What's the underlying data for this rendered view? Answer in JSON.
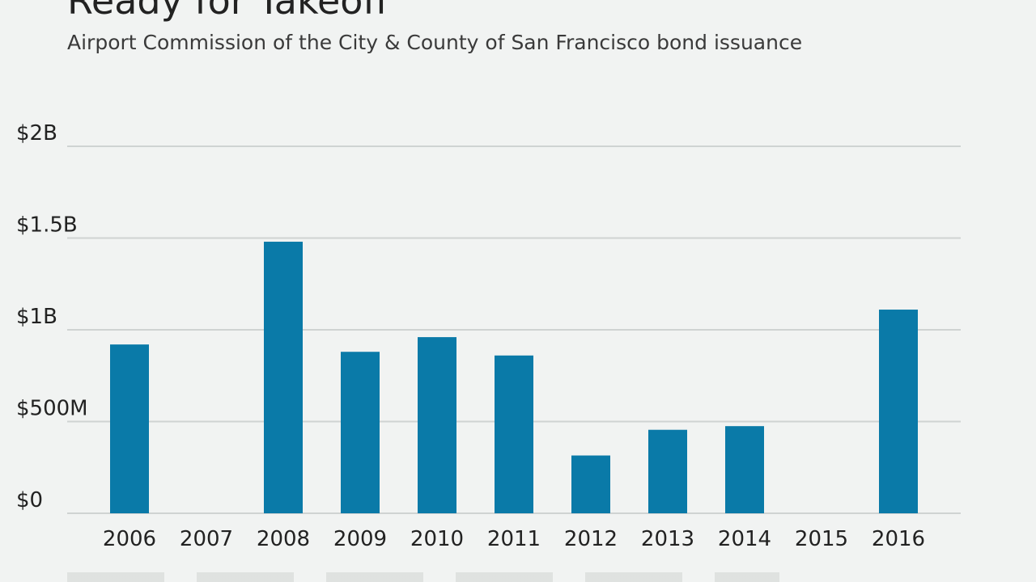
{
  "chart_data": {
    "type": "bar",
    "title": "Ready for Takeoff",
    "subtitle": "Airport Commission of the City & County of San Francisco bond issuance",
    "categories": [
      "2006",
      "2007",
      "2008",
      "2009",
      "2010",
      "2011",
      "2012",
      "2013",
      "2014",
      "2015",
      "2016"
    ],
    "values": [
      920,
      0,
      1480,
      880,
      960,
      860,
      315,
      455,
      475,
      0,
      1110
    ],
    "unit": "millions USD",
    "ylim": [
      0,
      2000
    ],
    "yticks": [
      0,
      500,
      1000,
      1500,
      2000
    ],
    "ytick_labels": [
      "$0",
      "$500M",
      "$1B",
      "$1.5B",
      "$2B"
    ],
    "xlabel": "",
    "ylabel": "",
    "grid": true,
    "colors": {
      "bar": "#0a7aa8",
      "grid": "#cfd3d2",
      "text": "#222222",
      "background": "#f1f3f2"
    }
  }
}
